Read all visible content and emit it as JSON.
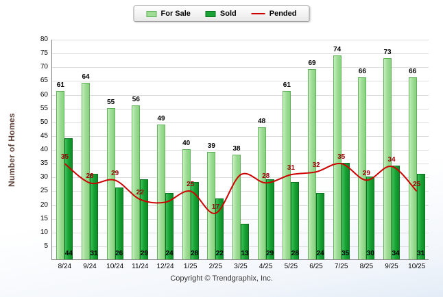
{
  "legend": {
    "for_sale": "For Sale",
    "sold": "Sold",
    "pended": "Pended"
  },
  "footer": {
    "copyright": "Copyright © Trendgraphix, Inc."
  },
  "chart_data": {
    "type": "bar",
    "title": "",
    "xlabel": "",
    "ylabel": "Number of Homes",
    "ylim": [
      0,
      80
    ],
    "ytick_step": 5,
    "yticks": [
      5,
      10,
      15,
      20,
      25,
      30,
      35,
      40,
      45,
      50,
      55,
      60,
      65,
      70,
      75,
      80
    ],
    "grid": true,
    "legend_position": "top-center",
    "categories": [
      "8/24",
      "9/24",
      "10/24",
      "11/24",
      "12/24",
      "1/25",
      "2/25",
      "3/25",
      "4/25",
      "5/25",
      "6/25",
      "7/25",
      "8/25",
      "9/25",
      "10/25"
    ],
    "series": [
      {
        "name": "For Sale",
        "type": "bar",
        "color": "#9fdd97",
        "values": [
          61,
          64,
          55,
          56,
          49,
          40,
          39,
          38,
          48,
          61,
          69,
          74,
          66,
          73,
          66
        ]
      },
      {
        "name": "Sold",
        "type": "bar",
        "color": "#18a334",
        "values": [
          44,
          31,
          26,
          29,
          24,
          28,
          22,
          13,
          29,
          28,
          24,
          35,
          30,
          34,
          31
        ]
      },
      {
        "name": "Pended",
        "type": "line",
        "color": "#cc0000",
        "label_color": "#9c0006",
        "values": [
          35,
          28,
          29,
          22,
          21,
          25,
          17,
          31,
          28,
          31,
          32,
          35,
          29,
          34,
          25
        ],
        "labels": [
          "35",
          "28",
          "29",
          "22",
          "",
          "25",
          "17",
          "",
          "28",
          "31",
          "32",
          "35",
          "29",
          "34",
          "25"
        ]
      }
    ]
  }
}
